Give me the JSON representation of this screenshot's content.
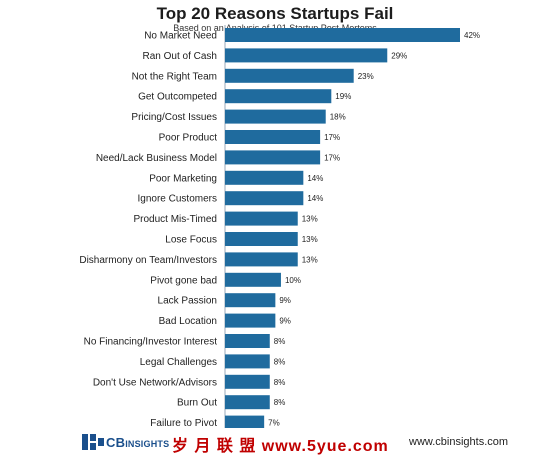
{
  "header": {
    "title": "Top 20 Reasons Startups Fail",
    "subtitle": "Based on an Analysis of 101 Startup Post-Mortems"
  },
  "colors": {
    "bar": "#1f6b9e",
    "text": "#1e1e1e"
  },
  "chart_data": {
    "type": "bar",
    "orientation": "horizontal",
    "title": "Top 20 Reasons Startups Fail",
    "subtitle": "Based on an Analysis of 101 Startup Post-Mortems",
    "xlabel": "",
    "ylabel": "",
    "value_suffix": "%",
    "xlim": [
      0,
      42
    ],
    "grid": false,
    "categories": [
      "No Market Need",
      "Ran Out of Cash",
      "Not the Right Team",
      "Get Outcompeted",
      "Pricing/Cost Issues",
      "Poor Product",
      "Need/Lack Business Model",
      "Poor Marketing",
      "Ignore Customers",
      "Product Mis-Timed",
      "Lose Focus",
      "Disharmony on Team/Investors",
      "Pivot gone bad",
      "Lack Passion",
      "Bad Location",
      "No Financing/Investor Interest",
      "Legal Challenges",
      "Don't Use Network/Advisors",
      "Burn Out",
      "Failure to Pivot"
    ],
    "values": [
      42,
      29,
      23,
      19,
      18,
      17,
      17,
      14,
      14,
      13,
      13,
      13,
      10,
      9,
      9,
      8,
      8,
      8,
      8,
      7
    ]
  },
  "footer": {
    "logo_main": "CB",
    "logo_sub": "INSIGHTS",
    "watermark": "岁 月 联 盟   www.5yue.com",
    "site": "www.cbinsights.com"
  }
}
